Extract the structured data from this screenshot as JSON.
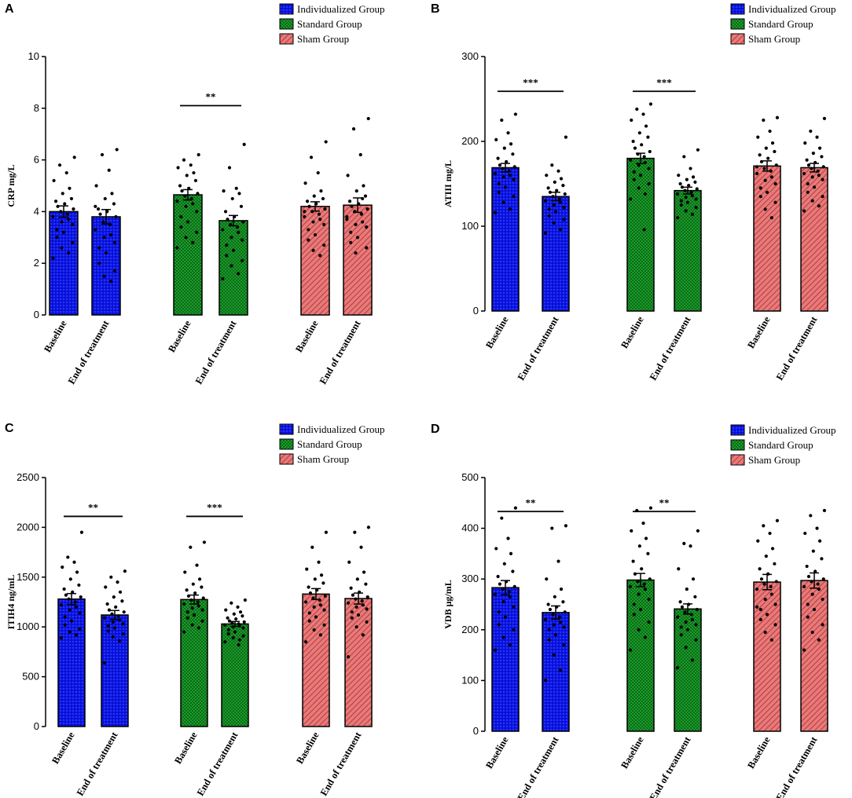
{
  "legend": [
    {
      "label": "Individualized Group",
      "color": "#0a14e6",
      "pattern": "dots"
    },
    {
      "label": "Standard Group",
      "color": "#1b9c2a",
      "pattern": "checks"
    },
    {
      "label": "Sham Group",
      "color": "#e06a6a",
      "pattern": "hatch"
    }
  ],
  "chart_data": [
    {
      "panel": "A",
      "type": "bar",
      "ylabel": "CRP mg/L",
      "ylim": [
        0,
        10
      ],
      "yticks": [
        "0",
        "2",
        "4",
        "6",
        "8",
        "10"
      ],
      "categories": [
        "Baseline",
        "End of treatment",
        "Baseline",
        "End of treatment",
        "Baseline",
        "End of treatment"
      ],
      "groups": [
        "Individualized Group",
        "Individualized Group",
        "Standard Group",
        "Standard Group",
        "Sham Group",
        "Sham Group"
      ],
      "values": [
        4.0,
        3.8,
        4.65,
        3.65,
        4.2,
        4.25
      ],
      "errors": [
        0.22,
        0.28,
        0.2,
        0.2,
        0.18,
        0.28
      ],
      "points": [
        [
          6.1,
          5.8,
          5.5,
          5.2,
          4.9,
          4.7,
          4.5,
          4.4,
          4.3,
          4.2,
          4.1,
          4.0,
          3.9,
          3.8,
          3.7,
          3.6,
          3.5,
          3.3,
          3.2,
          3.0,
          2.8,
          2.6,
          2.4,
          2.2
        ],
        [
          6.4,
          6.2,
          5.6,
          5.0,
          4.7,
          4.5,
          4.3,
          4.1,
          4.0,
          3.9,
          3.8,
          3.6,
          3.5,
          3.3,
          3.1,
          3.0,
          2.8,
          2.6,
          2.4,
          2.0,
          1.7,
          1.5,
          1.3,
          4.2
        ],
        [
          6.2,
          6.0,
          5.8,
          5.7,
          5.5,
          5.4,
          5.2,
          5.0,
          4.9,
          4.8,
          4.7,
          4.6,
          4.5,
          4.4,
          4.3,
          4.2,
          4.0,
          3.8,
          3.6,
          3.4,
          3.2,
          3.0,
          2.8,
          2.6
        ],
        [
          6.6,
          5.7,
          4.9,
          4.8,
          4.7,
          4.5,
          4.2,
          4.0,
          3.8,
          3.7,
          3.6,
          3.5,
          3.4,
          3.3,
          3.2,
          3.0,
          2.9,
          2.7,
          2.5,
          2.3,
          2.1,
          1.9,
          1.6,
          1.4
        ],
        [
          6.7,
          6.1,
          5.5,
          5.1,
          4.8,
          4.6,
          4.5,
          4.4,
          4.3,
          4.2,
          4.1,
          4.0,
          3.9,
          3.8,
          3.7,
          3.6,
          3.5,
          3.3,
          3.1,
          2.9,
          2.7,
          2.5,
          2.3,
          4.0
        ],
        [
          7.6,
          7.2,
          6.2,
          5.4,
          5.0,
          4.8,
          4.6,
          4.4,
          4.3,
          4.2,
          4.1,
          4.0,
          3.9,
          3.8,
          3.6,
          3.5,
          3.4,
          3.2,
          3.0,
          2.8,
          2.6,
          2.4,
          4.5,
          3.7
        ]
      ],
      "significance": [
        {
          "label": "**",
          "pair": [
            2,
            3
          ],
          "y": 8.1
        }
      ]
    },
    {
      "panel": "B",
      "type": "bar",
      "ylabel": "ATIII mg/L",
      "ylim": [
        0,
        300
      ],
      "yticks": [
        "0",
        "100",
        "200",
        "300"
      ],
      "categories": [
        "Baseline",
        "End of treatment",
        "Baseline",
        "End of treatment",
        "Baseline",
        "End of treatment"
      ],
      "groups": [
        "Individualized Group",
        "Individualized Group",
        "Standard Group",
        "Standard Group",
        "Sham Group",
        "Sham Group"
      ],
      "values": [
        169,
        135,
        180,
        142,
        171,
        169
      ],
      "errors": [
        5,
        5,
        6,
        4,
        6,
        5
      ],
      "points": [
        [
          232,
          225,
          210,
          202,
          197,
          192,
          185,
          180,
          176,
          172,
          170,
          168,
          165,
          162,
          160,
          158,
          155,
          150,
          146,
          140,
          135,
          128,
          120,
          116
        ],
        [
          205,
          172,
          165,
          160,
          156,
          152,
          148,
          145,
          142,
          140,
          138,
          135,
          132,
          130,
          128,
          125,
          122,
          120,
          117,
          112,
          108,
          104,
          96,
          92
        ],
        [
          244,
          238,
          232,
          225,
          218,
          210,
          205,
          200,
          196,
          192,
          188,
          185,
          182,
          178,
          175,
          172,
          168,
          164,
          160,
          155,
          150,
          145,
          138,
          132,
          96
        ],
        [
          190,
          182,
          168,
          160,
          158,
          155,
          152,
          150,
          148,
          146,
          144,
          142,
          140,
          138,
          136,
          134,
          132,
          130,
          128,
          125,
          122,
          118,
          114,
          110
        ],
        [
          228,
          225,
          212,
          205,
          198,
          192,
          188,
          184,
          180,
          176,
          172,
          168,
          165,
          162,
          158,
          154,
          150,
          145,
          140,
          135,
          128,
          120,
          110,
          170
        ],
        [
          227,
          212,
          205,
          198,
          192,
          186,
          182,
          178,
          175,
          172,
          170,
          168,
          165,
          162,
          160,
          158,
          155,
          150,
          146,
          140,
          135,
          130,
          124,
          118
        ]
      ],
      "significance": [
        {
          "label": "***",
          "pair": [
            0,
            1
          ],
          "y": 259
        },
        {
          "label": "***",
          "pair": [
            2,
            3
          ],
          "y": 259
        }
      ]
    },
    {
      "panel": "C",
      "type": "bar",
      "ylabel": "ITIH4 ng/mL",
      "ylim": [
        0,
        2500
      ],
      "yticks": [
        "0",
        "500",
        "1000",
        "1500",
        "2000",
        "2500"
      ],
      "categories": [
        "Baseline",
        "End of treatment",
        "Baseline",
        "End of treatment",
        "Baseline",
        "End of treatment"
      ],
      "groups": [
        "Individualized Group",
        "Individualized Group",
        "Standard Group",
        "Standard Group",
        "Sham Group",
        "Sham Group"
      ],
      "values": [
        1280,
        1120,
        1275,
        1030,
        1330,
        1285
      ],
      "errors": [
        55,
        45,
        45,
        25,
        55,
        55
      ],
      "points": [
        [
          1950,
          1700,
          1650,
          1600,
          1550,
          1480,
          1420,
          1380,
          1350,
          1320,
          1300,
          1280,
          1250,
          1220,
          1200,
          1170,
          1140,
          1100,
          1060,
          1020,
          980,
          950,
          920,
          890
        ],
        [
          1560,
          1500,
          1450,
          1400,
          1350,
          1300,
          1260,
          1230,
          1200,
          1170,
          1150,
          1130,
          1110,
          1090,
          1070,
          1050,
          1030,
          1010,
          990,
          960,
          930,
          900,
          860,
          640
        ],
        [
          1850,
          1800,
          1620,
          1550,
          1480,
          1430,
          1400,
          1370,
          1340,
          1310,
          1290,
          1270,
          1250,
          1230,
          1210,
          1190,
          1170,
          1150,
          1120,
          1090,
          1060,
          1020,
          990,
          950
        ],
        [
          1270,
          1240,
          1200,
          1170,
          1150,
          1130,
          1110,
          1090,
          1080,
          1060,
          1050,
          1040,
          1030,
          1020,
          1010,
          1000,
          990,
          970,
          950,
          930,
          910,
          890,
          870,
          850,
          820
        ],
        [
          1950,
          1800,
          1650,
          1580,
          1520,
          1480,
          1440,
          1400,
          1370,
          1340,
          1310,
          1290,
          1270,
          1250,
          1220,
          1200,
          1170,
          1140,
          1100,
          1060,
          1020,
          970,
          920,
          850
        ],
        [
          2000,
          1950,
          1800,
          1650,
          1550,
          1480,
          1430,
          1390,
          1350,
          1320,
          1300,
          1280,
          1260,
          1240,
          1220,
          1200,
          1180,
          1150,
          1120,
          1090,
          1050,
          1000,
          920,
          700
        ]
      ],
      "significance": [
        {
          "label": "**",
          "pair": [
            0,
            1
          ],
          "y": 2110
        },
        {
          "label": "***",
          "pair": [
            2,
            3
          ],
          "y": 2110
        }
      ]
    },
    {
      "panel": "D",
      "type": "bar",
      "ylabel": "VDB μg/mL",
      "ylim": [
        0,
        500
      ],
      "yticks": [
        "0",
        "100",
        "200",
        "300",
        "400",
        "500"
      ],
      "categories": [
        "Baseline",
        "End of treatment",
        "Baseline",
        "End of treatment",
        "Baseline",
        "End of treatment"
      ],
      "groups": [
        "Individualized Group",
        "Individualized Group",
        "Standard Group",
        "Standard Group",
        "Sham Group",
        "Sham Group"
      ],
      "values": [
        283,
        234,
        298,
        241,
        294,
        297
      ],
      "errors": [
        14,
        13,
        13,
        10,
        15,
        15
      ],
      "points": [
        [
          440,
          420,
          380,
          360,
          350,
          330,
          315,
          305,
          295,
          290,
          285,
          280,
          275,
          270,
          265,
          255,
          245,
          235,
          225,
          210,
          200,
          185,
          170,
          160
        ],
        [
          405,
          400,
          335,
          300,
          280,
          265,
          255,
          250,
          245,
          240,
          235,
          230,
          225,
          220,
          215,
          210,
          205,
          200,
          190,
          180,
          170,
          150,
          120,
          100
        ],
        [
          440,
          435,
          410,
          395,
          380,
          365,
          350,
          335,
          320,
          310,
          300,
          295,
          290,
          285,
          280,
          270,
          260,
          250,
          240,
          230,
          215,
          200,
          185,
          160
        ],
        [
          395,
          370,
          365,
          320,
          300,
          280,
          265,
          255,
          250,
          245,
          240,
          235,
          230,
          225,
          220,
          215,
          210,
          205,
          200,
          190,
          180,
          165,
          140,
          125
        ],
        [
          415,
          405,
          390,
          375,
          360,
          345,
          330,
          320,
          310,
          300,
          295,
          290,
          285,
          280,
          270,
          260,
          250,
          240,
          230,
          220,
          210,
          195,
          180,
          245
        ],
        [
          435,
          425,
          400,
          390,
          375,
          355,
          340,
          325,
          315,
          305,
          300,
          295,
          290,
          285,
          280,
          270,
          260,
          250,
          240,
          225,
          210,
          195,
          180,
          160
        ]
      ],
      "significance": [
        {
          "label": "**",
          "pair": [
            0,
            1
          ],
          "y": 433
        },
        {
          "label": "**",
          "pair": [
            2,
            3
          ],
          "y": 433
        }
      ]
    }
  ]
}
